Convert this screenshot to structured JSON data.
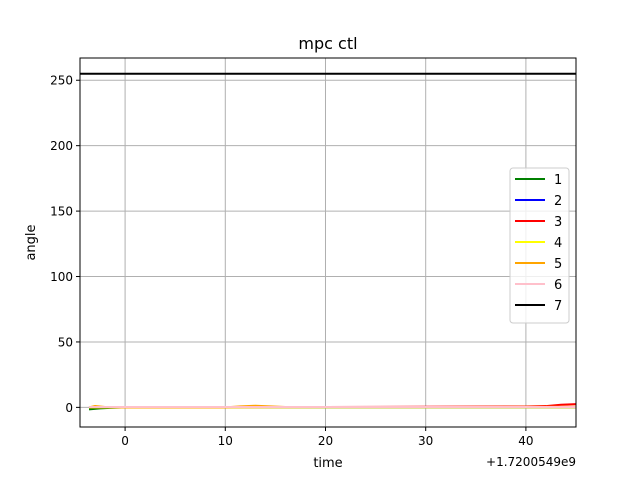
{
  "chart_data": {
    "type": "line",
    "title": "mpc ctl",
    "xlabel": "time",
    "ylabel": "angle",
    "x_offset_label": "+1.7200549e9",
    "xlim": [
      -4.5,
      45
    ],
    "ylim": [
      -15,
      267
    ],
    "xticks": [
      0,
      10,
      20,
      30,
      40
    ],
    "yticks": [
      0,
      50,
      100,
      150,
      200,
      250
    ],
    "grid": true,
    "legend_position": "center-right",
    "series": [
      {
        "name": "1",
        "color": "#008000",
        "x": [
          -3.6,
          -2.5,
          -1.5,
          0,
          45
        ],
        "y": [
          -1.5,
          -0.8,
          -0.4,
          0,
          0
        ]
      },
      {
        "name": "2",
        "color": "#0000ff",
        "x": [
          -3.6,
          45
        ],
        "y": [
          0,
          0
        ]
      },
      {
        "name": "3",
        "color": "#ff0000",
        "x": [
          -3.6,
          0,
          10,
          20,
          30,
          40,
          42,
          43.5,
          45
        ],
        "y": [
          0,
          0,
          0,
          0.3,
          0.5,
          0.7,
          1,
          2,
          2.5
        ]
      },
      {
        "name": "4",
        "color": "#ffff00",
        "x": [
          -3.6,
          45
        ],
        "y": [
          0,
          0
        ]
      },
      {
        "name": "5",
        "color": "#ffa500",
        "x": [
          -3.6,
          -3,
          -2,
          0,
          10,
          11.5,
          13,
          14.5,
          16,
          30,
          45
        ],
        "y": [
          0,
          1,
          0.3,
          0,
          0,
          0.8,
          1.2,
          0.8,
          0.3,
          0.3,
          0.5
        ]
      },
      {
        "name": "6",
        "color": "#ffc0cb",
        "x": [
          -3.6,
          45
        ],
        "y": [
          0.3,
          0.3
        ]
      },
      {
        "name": "7",
        "color": "#000000",
        "x": [
          -4.5,
          45
        ],
        "y": [
          255,
          255
        ]
      }
    ]
  }
}
